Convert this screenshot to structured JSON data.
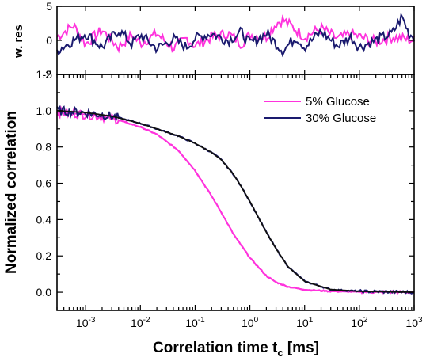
{
  "chart_data": [
    {
      "panel": "residuals",
      "type": "line",
      "ylabel": "w. res",
      "x_scale": "log",
      "xlim": [
        0.0003,
        1000
      ],
      "ylim": [
        -5,
        5
      ],
      "y_ticks": [
        "5",
        "0",
        "-5"
      ],
      "y_tick_values": [
        5,
        0,
        -5
      ],
      "grid": false,
      "series": [
        {
          "name": "5% Glucose",
          "color": "#ff33dd",
          "x": [
            0.0003,
            0.0006,
            0.001,
            0.002,
            0.004,
            0.007,
            0.01,
            0.02,
            0.04,
            0.07,
            0.1,
            0.2,
            0.4,
            0.7,
            1,
            2,
            3,
            4,
            6,
            10,
            20,
            40,
            70,
            100,
            200,
            400,
            1000
          ],
          "y": [
            0.5,
            2.2,
            -0.5,
            1.5,
            -1,
            0.8,
            -0.5,
            1,
            -1.2,
            0.3,
            -0.8,
            0.5,
            1,
            -0.5,
            0.8,
            0.5,
            2.5,
            3,
            2,
            0.5,
            1.8,
            0.2,
            1,
            0.5,
            -0.2,
            0.5,
            0
          ]
        },
        {
          "name": "30% Glucose",
          "color": "#1a1a6e",
          "x": [
            0.0003,
            0.0006,
            0.001,
            0.002,
            0.004,
            0.007,
            0.01,
            0.02,
            0.04,
            0.07,
            0.1,
            0.2,
            0.4,
            0.7,
            1,
            2,
            4,
            7,
            10,
            20,
            40,
            70,
            100,
            200,
            400,
            600,
            800,
            1000
          ],
          "y": [
            -1.5,
            0,
            1,
            -1,
            1.5,
            -0.5,
            0.8,
            -1.2,
            0.2,
            -1,
            0.3,
            1,
            0,
            1.2,
            -0.5,
            1,
            -1.5,
            0.5,
            -1,
            1.3,
            -0.8,
            0.5,
            -1,
            0,
            1,
            3.5,
            1,
            0.5
          ]
        }
      ]
    },
    {
      "panel": "correlation",
      "type": "line",
      "xlabel": "Correlation time t",
      "xlabel_sub": "c",
      "xlabel_unit": " [ms]",
      "ylabel": "Normalized correlation",
      "x_scale": "log",
      "xlim": [
        0.0003,
        1000
      ],
      "ylim": [
        -0.1,
        1.2
      ],
      "x_ticks": [
        {
          "value": 0.001,
          "base": "10",
          "exp": "-3"
        },
        {
          "value": 0.01,
          "base": "10",
          "exp": "-2"
        },
        {
          "value": 0.1,
          "base": "10",
          "exp": "-1"
        },
        {
          "value": 1,
          "base": "10",
          "exp": "0"
        },
        {
          "value": 10,
          "base": "10",
          "exp": "1"
        },
        {
          "value": 100,
          "base": "10",
          "exp": "2"
        },
        {
          "value": 1000,
          "base": "10",
          "exp": "3"
        }
      ],
      "y_ticks": [
        "0.0",
        "0.2",
        "0.4",
        "0.6",
        "0.8",
        "1.0",
        "1.2"
      ],
      "y_tick_values": [
        0.0,
        0.2,
        0.4,
        0.6,
        0.8,
        1.0,
        1.2
      ],
      "grid": false,
      "legend_position": "top-right",
      "series": [
        {
          "name": "5% Glucose",
          "color": "#ff33dd",
          "x": [
            0.0003,
            0.001,
            0.003,
            0.01,
            0.02,
            0.05,
            0.1,
            0.2,
            0.3,
            0.5,
            1,
            2,
            3,
            5,
            10,
            30,
            100,
            1000
          ],
          "y": [
            0.99,
            0.98,
            0.96,
            0.91,
            0.87,
            0.78,
            0.67,
            0.53,
            0.44,
            0.32,
            0.19,
            0.09,
            0.055,
            0.03,
            0.014,
            0.005,
            0.002,
            0.0
          ]
        },
        {
          "name": "30% Glucose",
          "color": "#1a1a6e",
          "x": [
            0.0003,
            0.001,
            0.003,
            0.01,
            0.02,
            0.05,
            0.1,
            0.2,
            0.3,
            0.5,
            0.7,
            1,
            2,
            3,
            5,
            10,
            30,
            100,
            1000
          ],
          "y": [
            1.0,
            0.99,
            0.97,
            0.93,
            0.9,
            0.86,
            0.82,
            0.77,
            0.73,
            0.65,
            0.58,
            0.5,
            0.33,
            0.24,
            0.14,
            0.06,
            0.015,
            0.005,
            0.0
          ]
        }
      ]
    }
  ]
}
